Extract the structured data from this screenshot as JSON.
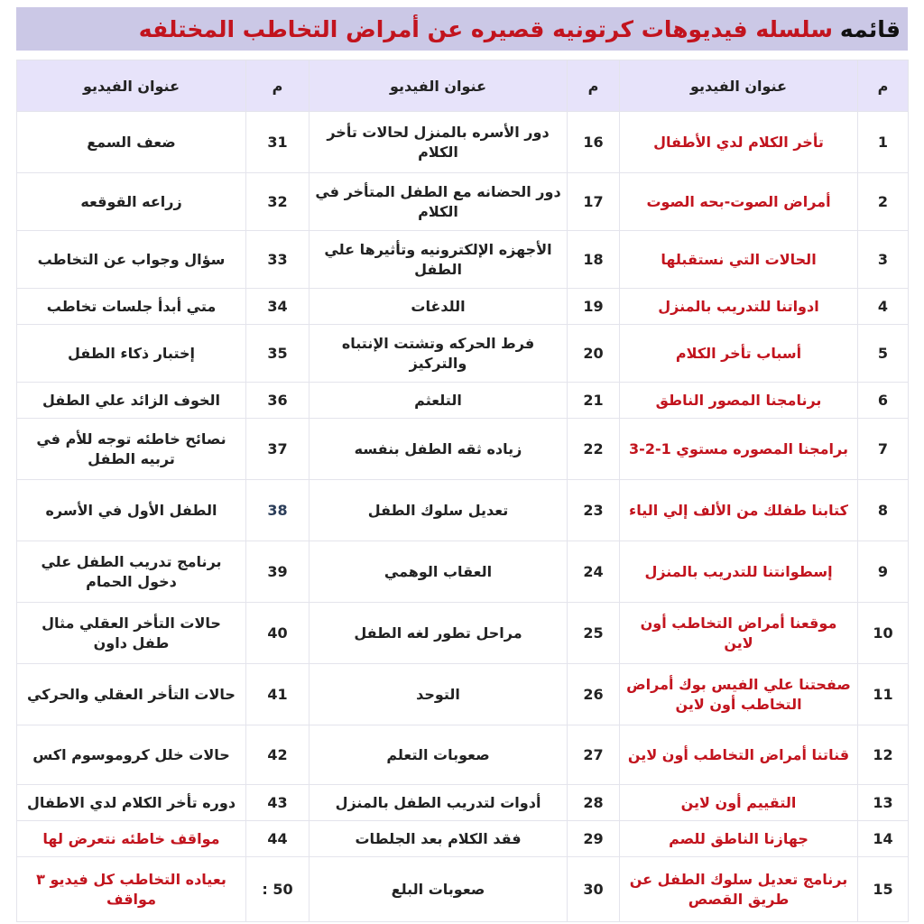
{
  "title": {
    "prefix": "قائمه",
    "main": "سلسله فيديوهات كرتونيه قصيره عن أمراض التخاطب المختلفه"
  },
  "colors": {
    "accent_red": "#c2141e",
    "banner_bg": "#cbc8e6",
    "header_bg": "#e7e3fa",
    "num_38": "#2c3e5a"
  },
  "headers": {
    "num": "م",
    "title": "عنوان الفيديو"
  },
  "rows": [
    [
      {
        "n": "1",
        "t": "تأخر الكلام لدي الأطفال"
      },
      {
        "n": "16",
        "t": "دور الأسره بالمنزل لحالات تأخر الكلام"
      },
      {
        "n": "31",
        "t": "ضعف السمع"
      }
    ],
    [
      {
        "n": "2",
        "t": "أمراض الصوت-بحه الصوت"
      },
      {
        "n": "17",
        "t": "دور الحضانه مع الطفل المتأخر في الكلام"
      },
      {
        "n": "32",
        "t": "زراعه القوقعه"
      }
    ],
    [
      {
        "n": "3",
        "t": "الحالات التي نستقبلها"
      },
      {
        "n": "18",
        "t": "الأجهزه الإلكترونيه وتأثيرها علي الطفل"
      },
      {
        "n": "33",
        "t": "سؤال وجواب عن التخاطب"
      }
    ],
    [
      {
        "n": "4",
        "t": "ادواتنا للتدريب بالمنزل"
      },
      {
        "n": "19",
        "t": "اللدغات"
      },
      {
        "n": "34",
        "t": "متي أبدأ جلسات تخاطب"
      }
    ],
    [
      {
        "n": "5",
        "t": "أسباب تأخر الكلام"
      },
      {
        "n": "20",
        "t": "فرط الحركه وتشتت الإنتباه والتركيز"
      },
      {
        "n": "35",
        "t": "إختبار ذكاء الطفل"
      }
    ],
    [
      {
        "n": "6",
        "t": "برنامجنا المصور الناطق"
      },
      {
        "n": "21",
        "t": "التلعثم"
      },
      {
        "n": "36",
        "t": "الخوف الزائد علي الطفل"
      }
    ],
    [
      {
        "n": "7",
        "t": "برامجنا المصوره مستوي 1-2-3"
      },
      {
        "n": "22",
        "t": "زياده ثقه الطفل بنفسه"
      },
      {
        "n": "37",
        "t": "نصائح خاطئه توجه للأم في تربيه الطفل"
      }
    ],
    [
      {
        "n": "8",
        "t": "كتابنا طفلك من الألف إلي الياء"
      },
      {
        "n": "23",
        "t": "تعديل سلوك الطفل"
      },
      {
        "n": "38",
        "t": "الطفل الأول في الأسره"
      }
    ],
    [
      {
        "n": "9",
        "t": "إسطوانتنا للتدريب بالمنزل"
      },
      {
        "n": "24",
        "t": "العقاب الوهمي"
      },
      {
        "n": "39",
        "t": "برنامج تدريب الطفل علي دخول الحمام"
      }
    ],
    [
      {
        "n": "10",
        "t": "موقعنا أمراض التخاطب أون لاين"
      },
      {
        "n": "25",
        "t": "مراحل تطور لغه الطفل"
      },
      {
        "n": "40",
        "t": "حالات التأخر العقلي مثال طفل داون"
      }
    ],
    [
      {
        "n": "11",
        "t": "صفحتنا علي الفيس بوك أمراض التخاطب أون لاين"
      },
      {
        "n": "26",
        "t": "التوحد"
      },
      {
        "n": "41",
        "t": "حالات التأخر العقلي والحركي"
      }
    ],
    [
      {
        "n": "12",
        "t": "قناتنا أمراض التخاطب أون لاين"
      },
      {
        "n": "27",
        "t": "صعوبات التعلم"
      },
      {
        "n": "42",
        "t": "حالات خلل كروموسوم اكس"
      }
    ],
    [
      {
        "n": "13",
        "t": "التقييم أون لاين"
      },
      {
        "n": "28",
        "t": "أدوات لتدريب الطفل بالمنزل"
      },
      {
        "n": "43",
        "t": "دوره تأخر الكلام لدي الاطفال"
      }
    ],
    [
      {
        "n": "14",
        "t": "جهازنا الناطق للصم"
      },
      {
        "n": "29",
        "t": "فقد الكلام بعد الجلطات"
      },
      {
        "n": "44",
        "t": "مواقف خاطئه نتعرض لها"
      }
    ],
    [
      {
        "n": "15",
        "t": "برنامج تعديل سلوك الطفل عن طريق القصص"
      },
      {
        "n": "30",
        "t": "صعوبات البلع"
      },
      {
        "n": "50 :",
        "t": "بعياده التخاطب كل فيديو ٣ مواقف"
      }
    ]
  ]
}
